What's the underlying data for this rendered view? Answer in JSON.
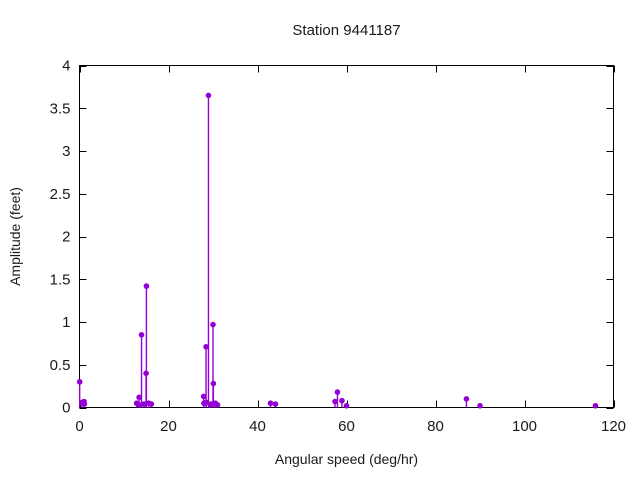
{
  "figure": {
    "background": "#ffffff",
    "border_color": "#000000",
    "text_color": "#1a1a1a"
  },
  "chart_data": {
    "type": "scatter",
    "style": "stem-impulses-with-point-markers",
    "title": "Station 9441187",
    "xlabel": "Angular speed (deg/hr)",
    "ylabel": "Amplitude (feet)",
    "xlim": [
      0,
      120
    ],
    "ylim": [
      0,
      4
    ],
    "xticks": [
      0,
      20,
      40,
      60,
      80,
      100,
      120
    ],
    "yticks": [
      0,
      0.5,
      1,
      1.5,
      2,
      2.5,
      3,
      3.5,
      4
    ],
    "grid": "off",
    "legend": "none",
    "marker_color": "#9400d3",
    "points": [
      {
        "x": 0.04,
        "y": 0.3
      },
      {
        "x": 0.54,
        "y": 0.06
      },
      {
        "x": 1.02,
        "y": 0.07
      },
      {
        "x": 1.1,
        "y": 0.04
      },
      {
        "x": 12.85,
        "y": 0.05
      },
      {
        "x": 13.4,
        "y": 0.12
      },
      {
        "x": 13.47,
        "y": 0.03
      },
      {
        "x": 13.94,
        "y": 0.85
      },
      {
        "x": 14.5,
        "y": 0.04
      },
      {
        "x": 14.96,
        "y": 0.4
      },
      {
        "x": 15.04,
        "y": 1.42
      },
      {
        "x": 15.58,
        "y": 0.05
      },
      {
        "x": 16.14,
        "y": 0.04
      },
      {
        "x": 27.9,
        "y": 0.13
      },
      {
        "x": 27.97,
        "y": 0.05
      },
      {
        "x": 28.44,
        "y": 0.71
      },
      {
        "x": 28.51,
        "y": 0.06
      },
      {
        "x": 28.98,
        "y": 3.65
      },
      {
        "x": 29.46,
        "y": 0.03
      },
      {
        "x": 29.53,
        "y": 0.04
      },
      {
        "x": 29.96,
        "y": 0.04
      },
      {
        "x": 30.0,
        "y": 0.97
      },
      {
        "x": 30.08,
        "y": 0.28
      },
      {
        "x": 30.54,
        "y": 0.05
      },
      {
        "x": 31.02,
        "y": 0.03
      },
      {
        "x": 42.93,
        "y": 0.05
      },
      {
        "x": 44.03,
        "y": 0.04
      },
      {
        "x": 57.42,
        "y": 0.07
      },
      {
        "x": 57.97,
        "y": 0.18
      },
      {
        "x": 58.98,
        "y": 0.08
      },
      {
        "x": 60.0,
        "y": 0.02
      },
      {
        "x": 86.95,
        "y": 0.1
      },
      {
        "x": 90.0,
        "y": 0.02
      },
      {
        "x": 115.94,
        "y": 0.02
      }
    ]
  }
}
